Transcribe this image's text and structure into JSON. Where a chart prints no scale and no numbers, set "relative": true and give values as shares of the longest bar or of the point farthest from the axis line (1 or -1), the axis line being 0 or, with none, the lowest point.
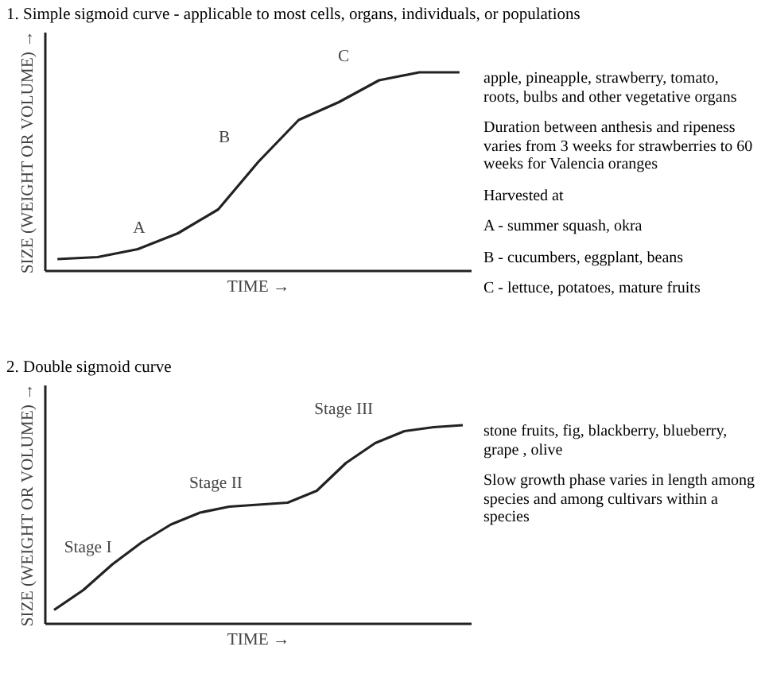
{
  "chart_data": [
    {
      "type": "line",
      "relative": true,
      "title": "1. Simple sigmoid curve - applicable to most cells, organs, individuals, or populations",
      "xlabel": "TIME →",
      "ylabel": "SIZE (WEIGHT OR VOLUME) →",
      "line_style": "solid",
      "categories": [
        null,
        null,
        null,
        null,
        null,
        null,
        null,
        null,
        null,
        null,
        null
      ],
      "series": [
        {
          "color": "#222222",
          "values": [
            0.06,
            0.07,
            0.11,
            0.19,
            0.31,
            0.55,
            0.76,
            0.85,
            0.96,
            1,
            1
          ]
        }
      ],
      "annotations": [
        "A",
        "B",
        "C",
        "apple, pineapple, strawberry, tomato, roots, bulbs and other vegetative organs",
        "Duration between anthesis and ripeness varies from 3 weeks for strawberries to 60 weeks for Valencia oranges",
        "Harvested at",
        "A - summer squash, okra",
        "B - cucumbers, eggplant, beans",
        "C - lettuce, potatoes, mature fruits"
      ]
    },
    {
      "type": "line",
      "relative": true,
      "title": "2. Double sigmoid curve",
      "xlabel": "TIME →",
      "ylabel": "SIZE (WEIGHT OR VOLUME) →",
      "line_style": "solid",
      "categories": [
        null,
        null,
        null,
        null,
        null,
        null,
        null,
        null,
        null,
        null,
        null,
        null,
        null,
        null,
        null
      ],
      "series": [
        {
          "color": "#222222",
          "values": [
            0.07,
            0.17,
            0.3,
            0.41,
            0.5,
            0.56,
            0.59,
            0.6,
            0.61,
            0.67,
            0.81,
            0.91,
            0.97,
            0.99,
            1
          ]
        }
      ],
      "annotations": [
        "Stage I",
        "Stage II",
        "Stage III",
        "stone fruits, fig, blackberry, blueberry, grape , olive",
        "Slow growth phase varies in length among species and among cultivars within a species"
      ]
    }
  ]
}
